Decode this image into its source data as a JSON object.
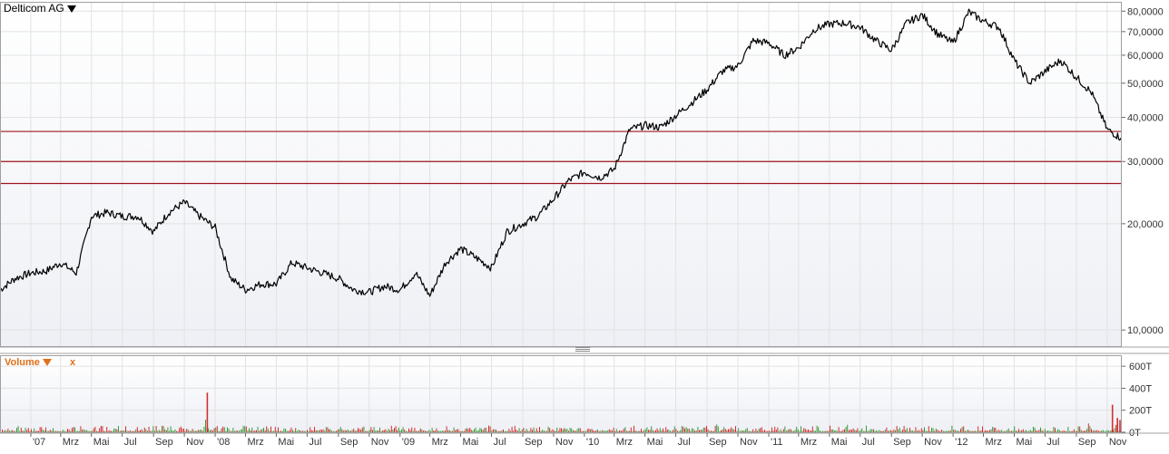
{
  "header": {
    "instrument_name": "Delticom AG"
  },
  "volume_panel": {
    "label": "Volume",
    "close_label": "x"
  },
  "colors": {
    "price_line": "#000000",
    "support_lines": "#a0141e",
    "volume_up": "#3a9a3a",
    "volume_down": "#d03030",
    "grid": "#e2e2e2",
    "border": "#a0a0a0",
    "accent": "#e0701a"
  },
  "chart_data": [
    {
      "type": "line",
      "title": "Delticom AG",
      "y_scale": "log",
      "ylim": [
        9000,
        85000
      ],
      "y_ticks": [
        10000,
        20000,
        30000,
        40000,
        50000,
        60000,
        70000,
        80000
      ],
      "y_tick_labels": [
        "10,0000",
        "20,0000",
        "30,0000",
        "40,0000",
        "50,0000",
        "60,0000",
        "70,0000",
        "80,0000"
      ],
      "x_tick_labels": [
        "'07",
        "Mrz",
        "Mai",
        "Jul",
        "Sep",
        "Nov",
        "'08",
        "Mrz",
        "Mai",
        "Jul",
        "Sep",
        "Nov",
        "'09",
        "Mrz",
        "Mai",
        "Jul",
        "Sep",
        "Nov",
        "'10",
        "Mrz",
        "Mai",
        "Jul",
        "Sep",
        "Nov",
        "'11",
        "Mrz",
        "Mai",
        "Jul",
        "Sep",
        "Nov",
        "'12",
        "Mrz",
        "Mai",
        "Jul",
        "Sep",
        "Nov"
      ],
      "x_tick_dates": [
        "2007-01",
        "2007-03",
        "2007-05",
        "2007-07",
        "2007-09",
        "2007-11",
        "2008-01",
        "2008-03",
        "2008-05",
        "2008-07",
        "2008-09",
        "2008-11",
        "2009-01",
        "2009-03",
        "2009-05",
        "2009-07",
        "2009-09",
        "2009-11",
        "2010-01",
        "2010-03",
        "2010-05",
        "2010-07",
        "2010-09",
        "2010-11",
        "2011-01",
        "2011-03",
        "2011-05",
        "2011-07",
        "2011-09",
        "2011-11",
        "2012-01",
        "2012-03",
        "2012-05",
        "2012-07",
        "2012-09",
        "2012-11"
      ],
      "horizontal_lines": [
        36500,
        30000,
        26000
      ],
      "series": [
        {
          "x": [
            "2006-11-01",
            "2006-12-01",
            "2007-01-01",
            "2007-02-01",
            "2007-03-01",
            "2007-04-01",
            "2007-05-01",
            "2007-06-01",
            "2007-07-01",
            "2007-08-01",
            "2007-09-01",
            "2007-10-01",
            "2007-11-01",
            "2007-12-01",
            "2008-01-01",
            "2008-02-01",
            "2008-03-01",
            "2008-04-01",
            "2008-05-01",
            "2008-06-01",
            "2008-07-01",
            "2008-08-01",
            "2008-09-01",
            "2008-10-01",
            "2008-11-01",
            "2008-12-01",
            "2009-01-01",
            "2009-02-01",
            "2009-03-01",
            "2009-04-01",
            "2009-05-01",
            "2009-06-01",
            "2009-07-01",
            "2009-08-01",
            "2009-09-01",
            "2009-10-01",
            "2009-11-01",
            "2009-12-01",
            "2010-01-01",
            "2010-02-01",
            "2010-03-01",
            "2010-04-01",
            "2010-05-01",
            "2010-06-01",
            "2010-07-01",
            "2010-08-01",
            "2010-09-01",
            "2010-10-01",
            "2010-11-01",
            "2010-12-01",
            "2011-01-01",
            "2011-02-01",
            "2011-03-01",
            "2011-04-01",
            "2011-05-01",
            "2011-06-01",
            "2011-07-01",
            "2011-08-01",
            "2011-09-01",
            "2011-10-01",
            "2011-11-01",
            "2011-12-01",
            "2012-01-01",
            "2012-02-01",
            "2012-03-01",
            "2012-04-01",
            "2012-05-01",
            "2012-06-01",
            "2012-07-01",
            "2012-08-01",
            "2012-09-01",
            "2012-10-01",
            "2012-11-01",
            "2012-11-28"
          ],
          "values": [
            13000,
            14000,
            14500,
            14700,
            15500,
            14500,
            21000,
            21500,
            21000,
            21000,
            19000,
            21500,
            23000,
            21000,
            19500,
            14000,
            13000,
            13500,
            13500,
            15500,
            15000,
            14500,
            14000,
            13000,
            12800,
            13300,
            13000,
            14500,
            12500,
            15500,
            17000,
            16000,
            15000,
            19000,
            20000,
            21000,
            23500,
            26500,
            28000,
            27000,
            28500,
            37000,
            38000,
            37500,
            40500,
            44000,
            48000,
            54000,
            56000,
            66000,
            65000,
            60000,
            63000,
            71000,
            73500,
            74000,
            72000,
            66000,
            62000,
            74000,
            78000,
            69000,
            65000,
            79500,
            75000,
            72000,
            58000,
            50000,
            54000,
            58000,
            52000,
            47000,
            37000,
            35000
          ]
        }
      ]
    },
    {
      "type": "bar",
      "title": "Volume",
      "ylim": [
        0,
        700000
      ],
      "y_ticks": [
        0,
        200000,
        400000,
        600000
      ],
      "y_tick_labels": [
        "0T",
        "200T",
        "400T",
        "600T"
      ],
      "spikes": [
        {
          "date": "2007-12-15",
          "value": 360000
        },
        {
          "date": "2012-11-10",
          "value": 250000
        },
        {
          "date": "2012-11-20",
          "value": 130000
        },
        {
          "date": "2012-11-25",
          "value": 110000
        }
      ],
      "typical_range": [
        10000,
        60000
      ]
    }
  ]
}
